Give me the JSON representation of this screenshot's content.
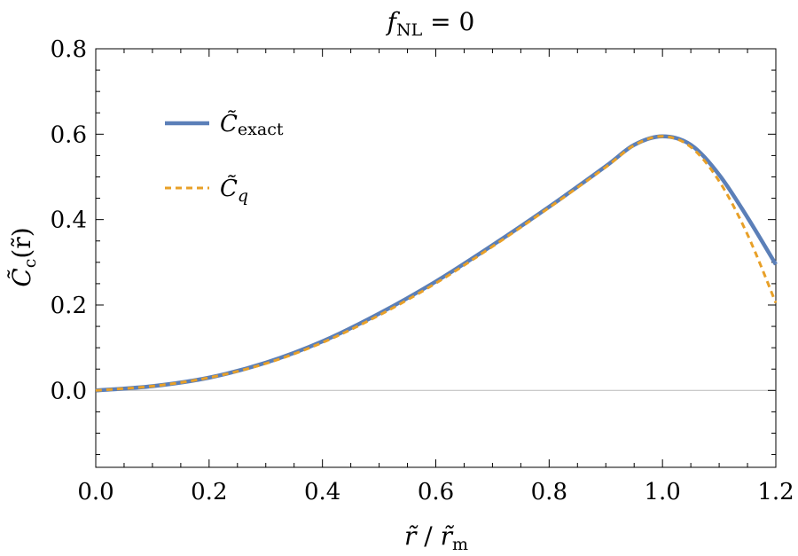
{
  "chart_data": {
    "type": "line",
    "title": {
      "base": "f",
      "sub": "NL",
      "rest": " = 0"
    },
    "xlabel": {
      "num_base": "r̃",
      "sep": " / ",
      "den_base": "r̃",
      "den_sub": "m"
    },
    "ylabel": {
      "base": "C̃",
      "sub": "c",
      "arg": "(r̃)"
    },
    "xlim": [
      0.0,
      1.2
    ],
    "ylim": [
      -0.18,
      0.8
    ],
    "x_ticks": [
      "0.0",
      "0.2",
      "0.4",
      "0.6",
      "0.8",
      "1.0",
      "1.2"
    ],
    "y_ticks": [
      "0.0",
      "0.2",
      "0.4",
      "0.6",
      "0.8"
    ],
    "grid": false,
    "legend_position": "top-left",
    "series": [
      {
        "name": "C̃exact",
        "legend": {
          "base": "C̃",
          "sub": "exact"
        },
        "color": "#5b7fb8",
        "style": "solid",
        "x": [
          0.0,
          0.1,
          0.2,
          0.3,
          0.4,
          0.5,
          0.6,
          0.7,
          0.8,
          0.9,
          0.95,
          1.0,
          1.05,
          1.1,
          1.15,
          1.2
        ],
        "y": [
          0.0,
          0.01,
          0.03,
          0.065,
          0.115,
          0.18,
          0.255,
          0.34,
          0.43,
          0.525,
          0.575,
          0.595,
          0.575,
          0.505,
          0.405,
          0.295
        ]
      },
      {
        "name": "C̃q",
        "legend": {
          "base": "C̃",
          "sub": "q"
        },
        "color": "#e8a028",
        "style": "dashed",
        "x": [
          0.0,
          0.1,
          0.2,
          0.3,
          0.4,
          0.5,
          0.6,
          0.7,
          0.8,
          0.9,
          0.95,
          1.0,
          1.05,
          1.1,
          1.15,
          1.2
        ],
        "y": [
          0.0,
          0.01,
          0.03,
          0.063,
          0.112,
          0.176,
          0.251,
          0.337,
          0.428,
          0.523,
          0.574,
          0.595,
          0.57,
          0.49,
          0.365,
          0.205
        ]
      }
    ]
  }
}
